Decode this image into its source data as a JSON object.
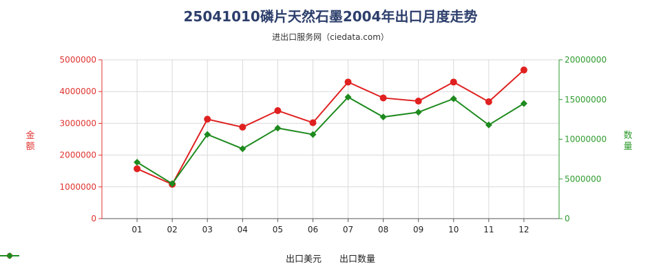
{
  "chart_data": {
    "type": "line",
    "title": "25041010磷片天然石墨2004年出口月度走势",
    "subtitle": "进出口服务网（ciedata.com）",
    "categories": [
      "01",
      "02",
      "03",
      "04",
      "05",
      "06",
      "07",
      "08",
      "09",
      "10",
      "11",
      "12"
    ],
    "y_left": {
      "label": "金额",
      "lim": [
        0,
        5000000
      ],
      "ticks": [
        "0",
        "1000000",
        "2000000",
        "3000000",
        "4000000",
        "5000000"
      ],
      "tick_values": [
        0,
        1000000,
        2000000,
        3000000,
        4000000,
        5000000
      ],
      "color": "#e0322e"
    },
    "y_right": {
      "label": "数量",
      "lim": [
        0,
        20000000
      ],
      "ticks": [
        "0",
        "5000000",
        "10000000",
        "15000000",
        "20000000"
      ],
      "tick_values": [
        0,
        5000000,
        10000000,
        15000000,
        20000000
      ],
      "color": "#2e9a2e"
    },
    "series": [
      {
        "name": "出口美元",
        "axis": "left",
        "color": "#e02020",
        "marker": "circle",
        "values": [
          1570000,
          1080000,
          3130000,
          2880000,
          3400000,
          3020000,
          4300000,
          3800000,
          3700000,
          4300000,
          3680000,
          4680000
        ]
      },
      {
        "name": "出口数量",
        "axis": "right",
        "color": "#1e8a1e",
        "marker": "diamond",
        "values": [
          7100000,
          4400000,
          10600000,
          8800000,
          11400000,
          10600000,
          15300000,
          12800000,
          13400000,
          15100000,
          11800000,
          14500000
        ]
      }
    ],
    "grid": true,
    "legend_position": "bottom-center"
  }
}
